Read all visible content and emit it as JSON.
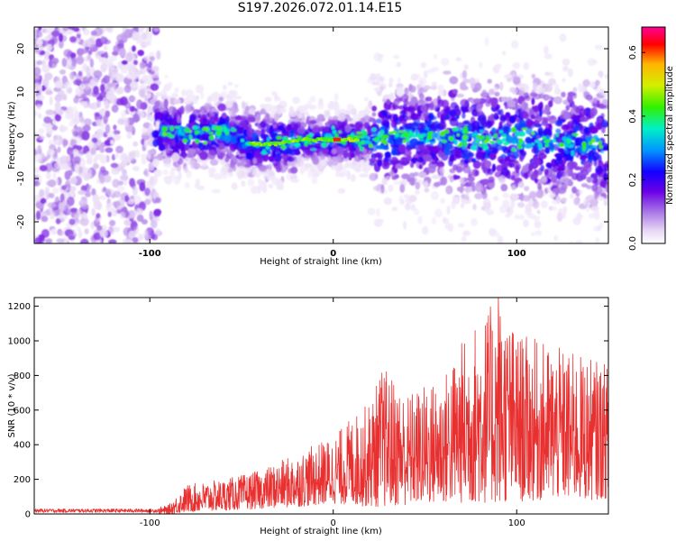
{
  "title": "S197.2026.072.01.14.E15",
  "chart_data": [
    {
      "type": "heatmap",
      "title": "S197.2026.072.01.14.E15",
      "xlabel": "Height of straight line (km)",
      "ylabel": "Frequency (Hz)",
      "xlim": [
        -163,
        150
      ],
      "ylim": [
        -25,
        25
      ],
      "xticks": [
        -100,
        0,
        100
      ],
      "xtick_labels": [
        "-100",
        "0",
        "100"
      ],
      "yticks": [
        -20,
        -10,
        0,
        10,
        20
      ],
      "ytick_labels": [
        "-20",
        "-10",
        "0",
        "10",
        "20"
      ],
      "colorbar": {
        "label": "Normalized spectral amplitude",
        "range": [
          0,
          0.68
        ],
        "ticks": [
          0.0,
          0.2,
          0.4,
          0.6
        ],
        "tick_labels": [
          "0.0",
          "0.2",
          "0.4",
          "0.6"
        ],
        "colormap": [
          "#ffffff",
          "#e6d6f5",
          "#a672e6",
          "#6b00e6",
          "#1400ff",
          "#0096ff",
          "#00f0c8",
          "#32f000",
          "#d2f000",
          "#ffb400",
          "#ff0000",
          "#ff0096"
        ]
      },
      "ridge": {
        "description": "strongest amplitude along ~0 Hz, peak near 0-5 km",
        "x": [
          -95,
          -80,
          -60,
          -45,
          -30,
          -15,
          0,
          2,
          10,
          20,
          40,
          60,
          80,
          100,
          120,
          145
        ],
        "y": [
          1,
          0,
          1,
          -2,
          -2,
          -1,
          -1,
          -1,
          -1,
          -1,
          0,
          0,
          -1,
          -1,
          -2,
          -2
        ]
      }
    },
    {
      "type": "line",
      "xlabel": "Height of straight line (km)",
      "ylabel": "SNR (10 * v/v)",
      "xlim": [
        -163,
        150
      ],
      "ylim": [
        0,
        1250
      ],
      "xticks": [
        -100,
        0,
        100
      ],
      "xtick_labels": [
        "-100",
        "0",
        "100"
      ],
      "yticks": [
        0,
        200,
        400,
        600,
        800,
        1000,
        1200
      ],
      "ytick_labels": [
        "0",
        "200",
        "400",
        "600",
        "800",
        "1000",
        "1200"
      ],
      "color": "#e83030",
      "envelope": {
        "x": [
          -163,
          -100,
          -90,
          -80,
          -60,
          -40,
          -20,
          0,
          10,
          20,
          27,
          40,
          60,
          73,
          90,
          100,
          120,
          140,
          150
        ],
        "upper": [
          30,
          30,
          50,
          170,
          200,
          250,
          350,
          450,
          560,
          650,
          860,
          700,
          800,
          1060,
          1250,
          1050,
          970,
          900,
          870
        ],
        "lower": [
          0,
          0,
          0,
          10,
          20,
          30,
          40,
          60,
          50,
          40,
          40,
          50,
          60,
          60,
          60,
          70,
          80,
          80,
          90
        ]
      },
      "peak": {
        "x": 90,
        "y": 1250
      }
    }
  ]
}
